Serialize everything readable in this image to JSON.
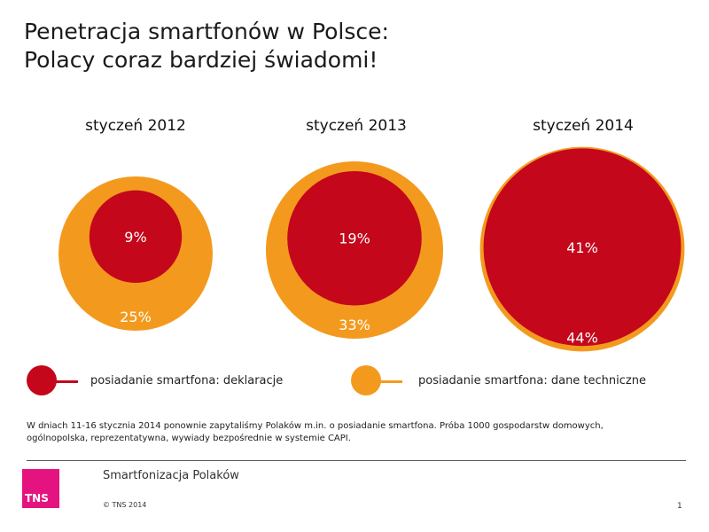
{
  "title": {
    "line1": "Penetracja smartfonów w Polsce:",
    "line2": "Polacy coraz bardziej świadomi!"
  },
  "chart_data": {
    "type": "bubble",
    "categories": [
      "styczeń 2012",
      "styczeń 2013",
      "styczeń 2014"
    ],
    "series": [
      {
        "name": "posiadanie smartfona: dane techniczne",
        "values": [
          25,
          33,
          44
        ],
        "labels": [
          "25%",
          "33%",
          "44%"
        ],
        "color": "#f39a1e"
      },
      {
        "name": "posiadanie smartfona: deklaracje",
        "values": [
          9,
          19,
          41
        ],
        "labels": [
          "9%",
          "19%",
          "41%"
        ],
        "color": "#c4071b"
      }
    ]
  },
  "legend": [
    {
      "label": "posiadanie smartfona: deklaracje",
      "color": "#c4071b"
    },
    {
      "label": "posiadanie smartfona: dane techniczne",
      "color": "#f39a1e"
    }
  ],
  "note": "W dniach 11-16 stycznia 2014 ponownie zapytaliśmy Polaków m.in.  o posiadanie smartfona. Próba 1000 gospodarstw domowych, ogólnopolska,  reprezentatywna, wywiady bezpośrednie  w systemie  CAPI.",
  "footer": {
    "title": "Smartfonizacja Polaków",
    "copyright": "© TNS 2014",
    "page": "1",
    "logo_text": "TNS"
  },
  "colors": {
    "orange": "#f39a1e",
    "red": "#c4071b",
    "logo": "#e5137f"
  }
}
